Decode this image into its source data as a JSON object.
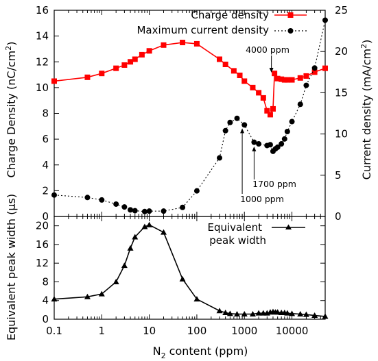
{
  "chart_data": [
    {
      "type": "line",
      "xscale": "log",
      "xlim": [
        0.1,
        50000
      ],
      "ylim": [
        0,
        16
      ],
      "y2lim": [
        0,
        25
      ],
      "ylabel_prefix": "Charge Density (nC/cm",
      "ylabel_sup": "2",
      "ylabel_suffix": ")",
      "y2label_prefix": "Current density (mA/cm",
      "y2label_sup": "2",
      "y2label_suffix": ")",
      "yticks": [
        "0",
        "2",
        "4",
        "6",
        "8",
        "10",
        "12",
        "14",
        "16"
      ],
      "y2ticks": [
        "0",
        "5",
        "10",
        "15",
        "20",
        "25"
      ],
      "legend_position": "top-right",
      "series": [
        {
          "name": "Charge density",
          "color": "#ff0000",
          "marker": "square",
          "line": "solid",
          "axis": "left",
          "x": [
            0.1,
            0.5,
            1,
            2,
            3,
            4,
            5,
            7,
            10,
            20,
            50,
            100,
            300,
            400,
            600,
            800,
            1000,
            1500,
            2000,
            2500,
            3000,
            3500,
            4000,
            4300,
            5000,
            6000,
            7000,
            8000,
            10000,
            15000,
            20000,
            30000,
            50000
          ],
          "values": [
            10.5,
            10.8,
            11.1,
            11.5,
            11.75,
            12.0,
            12.2,
            12.55,
            12.85,
            13.3,
            13.5,
            13.4,
            12.2,
            11.8,
            11.3,
            10.95,
            10.5,
            10.0,
            9.6,
            9.2,
            8.2,
            7.9,
            8.35,
            11.1,
            10.7,
            10.65,
            10.6,
            10.6,
            10.6,
            10.75,
            10.9,
            11.2,
            11.5
          ]
        },
        {
          "name": "Maximum current density",
          "color": "#000000",
          "marker": "circle",
          "line": "dotted",
          "axis": "right",
          "x": [
            0.1,
            0.5,
            1,
            2,
            3,
            4,
            5,
            8,
            10,
            20,
            50,
            100,
            300,
            400,
            500,
            700,
            1000,
            1600,
            2000,
            3000,
            3500,
            4000,
            4500,
            5000,
            6000,
            7000,
            8000,
            10000,
            15000,
            20000,
            30000,
            50000
          ],
          "values": [
            2.6,
            2.3,
            2.0,
            1.5,
            1.15,
            0.8,
            0.7,
            0.6,
            0.65,
            0.65,
            1.1,
            3.1,
            7.1,
            10.4,
            11.4,
            11.9,
            11.1,
            9.0,
            8.8,
            8.6,
            8.7,
            7.9,
            8.2,
            8.4,
            8.8,
            9.4,
            10.3,
            11.5,
            13.6,
            15.9,
            18.0,
            23.8
          ]
        }
      ],
      "annotations": [
        {
          "text": "4000 ppm",
          "x": 3700,
          "y_right": 19.5,
          "arrow_to": [
            3700,
            17.6
          ]
        },
        {
          "text": "1700 ppm",
          "x": 1600,
          "y_right": 3.7,
          "arrow_to": [
            1600,
            7.8
          ]
        },
        {
          "text": "1000 ppm",
          "x": 900,
          "y_right": 2.1,
          "arrow_to": [
            900,
            10.0
          ]
        }
      ]
    },
    {
      "type": "line",
      "xscale": "log",
      "xlim": [
        0.1,
        50000
      ],
      "ylim": [
        0,
        22
      ],
      "xlabel_prefix": "N",
      "xlabel_sub": "2",
      "xlabel_suffix": " content (ppm)",
      "ylabel": "Equivalent peak width (µs)",
      "xticks": [
        "0.1",
        "1",
        "10",
        "100",
        "1000",
        "10000"
      ],
      "yticks": [
        "0",
        "4",
        "8",
        "12",
        "16",
        "20"
      ],
      "legend_position": "top-right",
      "series": [
        {
          "name_line1": "Equivalent",
          "name_line2": "peak width",
          "color": "#000000",
          "marker": "triangle",
          "line": "solid",
          "x": [
            0.1,
            0.5,
            1,
            2,
            3,
            4,
            5,
            8,
            10,
            20,
            50,
            100,
            300,
            400,
            500,
            700,
            1000,
            1500,
            2000,
            2500,
            3000,
            3500,
            4000,
            4500,
            5000,
            6000,
            7000,
            8000,
            10000,
            15000,
            20000,
            30000,
            50000
          ],
          "values": [
            4.3,
            4.8,
            5.4,
            8.0,
            11.5,
            15.2,
            17.6,
            19.8,
            20.2,
            18.6,
            8.6,
            4.3,
            1.8,
            1.4,
            1.2,
            1.1,
            1.1,
            1.1,
            1.3,
            1.3,
            1.3,
            1.5,
            1.6,
            1.5,
            1.5,
            1.4,
            1.4,
            1.3,
            1.2,
            1.1,
            1.0,
            0.8,
            0.6
          ]
        }
      ]
    }
  ]
}
